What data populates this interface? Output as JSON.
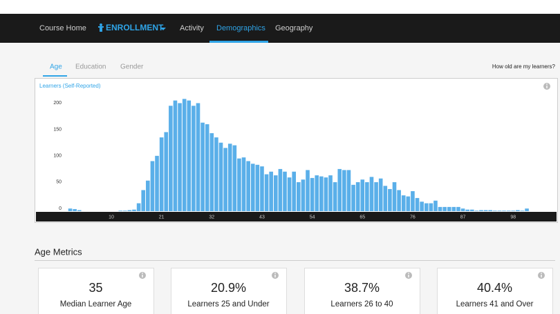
{
  "nav": {
    "items": [
      "Course Home",
      "ENROLLMENT",
      "Activity",
      "Demographics",
      "Geography"
    ]
  },
  "tabs": [
    "Age",
    "Education",
    "Gender"
  ],
  "question": "How old are my learners?",
  "chart_data": {
    "type": "bar",
    "title": "Learners (Self-Reported)",
    "color": "#5aafe9",
    "x": [
      1,
      2,
      3,
      4,
      5,
      6,
      7,
      8,
      9,
      10,
      11,
      12,
      13,
      14,
      15,
      16,
      17,
      18,
      19,
      20,
      21,
      22,
      23,
      24,
      25,
      26,
      27,
      28,
      29,
      30,
      31,
      32,
      33,
      34,
      35,
      36,
      37,
      38,
      39,
      40,
      41,
      42,
      43,
      44,
      45,
      46,
      47,
      48,
      49,
      50,
      51,
      52,
      53,
      54,
      55,
      56,
      57,
      58,
      59,
      60,
      61,
      62,
      63,
      64,
      65,
      66,
      67,
      68,
      69,
      70,
      71,
      72,
      73,
      74,
      75,
      76,
      77,
      78,
      79,
      80,
      81,
      82,
      83,
      84,
      85,
      86,
      87,
      88,
      89,
      90,
      91,
      92,
      93,
      94,
      95,
      96,
      97,
      98,
      99,
      100,
      101
    ],
    "values": [
      5,
      4,
      2,
      0,
      0,
      0,
      0,
      0,
      0,
      0,
      0,
      1,
      1,
      2,
      3,
      15,
      40,
      58,
      95,
      105,
      140,
      150,
      200,
      210,
      205,
      213,
      210,
      200,
      205,
      168,
      165,
      148,
      140,
      130,
      120,
      128,
      125,
      100,
      102,
      95,
      90,
      88,
      85,
      70,
      75,
      68,
      80,
      75,
      64,
      75,
      55,
      60,
      78,
      63,
      68,
      66,
      64,
      68,
      55,
      80,
      78,
      78,
      50,
      55,
      60,
      55,
      65,
      55,
      62,
      48,
      42,
      55,
      40,
      30,
      28,
      38,
      25,
      18,
      15,
      15,
      20,
      8,
      8,
      8,
      8,
      8,
      5,
      3,
      3,
      1,
      2,
      2,
      2,
      1,
      1,
      1,
      1,
      1,
      2,
      1,
      5
    ],
    "xlim": [
      -6.5,
      107.5
    ],
    "xticks": [
      10,
      21,
      32,
      43,
      54,
      65,
      76,
      87,
      98
    ],
    "ylim": [
      0,
      220
    ],
    "yticks": [
      0,
      50,
      100,
      150,
      200
    ]
  },
  "metrics": {
    "title": "Age Metrics",
    "cards": [
      {
        "value": "35",
        "label": "Median Learner Age"
      },
      {
        "value": "20.9%",
        "label": "Learners 25 and Under"
      },
      {
        "value": "38.7%",
        "label": "Learners 26 to 40"
      },
      {
        "value": "40.4%",
        "label": "Learners 41 and Over"
      }
    ]
  }
}
